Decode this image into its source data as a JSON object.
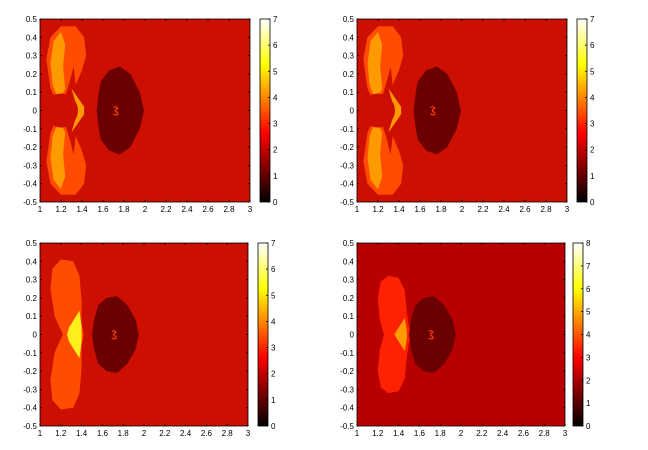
{
  "chart_data": [
    {
      "type": "heatmap",
      "xlim": [
        1,
        3
      ],
      "ylim": [
        -0.5,
        0.5
      ],
      "x_ticks": [
        "1",
        "1.2",
        "1.4",
        "1.6",
        "1.8",
        "2",
        "2.2",
        "2.4",
        "2.6",
        "2.8",
        "3"
      ],
      "y_ticks": [
        "0.5",
        "0.4",
        "0.3",
        "0.2",
        "0.1",
        "0",
        "-0.1",
        "-0.2",
        "-0.3",
        "-0.4",
        "-0.5"
      ],
      "colorbar": {
        "colormap": "hot",
        "range": [
          0,
          7
        ],
        "ticks": [
          "7",
          "6",
          "5",
          "4",
          "3",
          "2",
          "1",
          "0"
        ]
      },
      "background_value": 3,
      "regions": [
        {
          "shape": "outer lobes",
          "x_range": [
            1.1,
            1.45
          ],
          "value": 4
        },
        {
          "shape": "inner lobe crescents",
          "value": 5
        },
        {
          "shape": "small disk",
          "center": [
            1.2,
            0
          ],
          "value": 3
        },
        {
          "shape": "dark blob",
          "x_range": [
            1.55,
            2.0
          ],
          "y_range": [
            -0.22,
            0.22
          ],
          "value": 0.5
        }
      ]
    },
    {
      "type": "heatmap",
      "xlim": [
        1,
        3
      ],
      "ylim": [
        -0.5,
        0.5
      ],
      "x_ticks": [
        "1",
        "1.2",
        "1.4",
        "1.6",
        "1.8",
        "2",
        "2.2",
        "2.4",
        "2.6",
        "2.8",
        "3"
      ],
      "y_ticks": [
        "0.5",
        "0.4",
        "0.3",
        "0.2",
        "0.1",
        "0",
        "-0.1",
        "-0.2",
        "-0.3",
        "-0.4",
        "-0.5"
      ],
      "colorbar": {
        "colormap": "hot",
        "range": [
          0,
          7
        ],
        "ticks": [
          "7",
          "6",
          "5",
          "4",
          "3",
          "2",
          "1",
          "0"
        ]
      },
      "background_value": 3,
      "regions": [
        {
          "shape": "outer lobes",
          "x_range": [
            1.1,
            1.45
          ],
          "value": 4
        },
        {
          "shape": "inner lobe crescents",
          "value": 5
        },
        {
          "shape": "small disk",
          "center": [
            1.2,
            0
          ],
          "value": 3
        },
        {
          "shape": "dark blob",
          "x_range": [
            1.55,
            2.0
          ],
          "y_range": [
            -0.22,
            0.22
          ],
          "value": 0.5
        }
      ]
    },
    {
      "type": "heatmap",
      "xlim": [
        1,
        3
      ],
      "ylim": [
        -0.5,
        0.5
      ],
      "x_ticks": [
        "1",
        "1.2",
        "1.4",
        "1.6",
        "1.8",
        "2",
        "2.2",
        "2.4",
        "2.6",
        "2.8",
        "3"
      ],
      "y_ticks": [
        "0.5",
        "0.4",
        "0.3",
        "0.2",
        "0.1",
        "0",
        "-0.1",
        "-0.2",
        "-0.3",
        "-0.4",
        "-0.5"
      ],
      "colorbar": {
        "colormap": "hot",
        "range": [
          0,
          7
        ],
        "ticks": [
          "7",
          "6",
          "5",
          "4",
          "3",
          "2",
          "1",
          "0"
        ]
      },
      "background_value": 3,
      "regions": [
        {
          "shape": "lobes",
          "x_range": [
            1.1,
            1.4
          ],
          "value": 4
        },
        {
          "shape": "center wedge",
          "value": 5
        },
        {
          "shape": "dark blob",
          "x_range": [
            1.5,
            1.95
          ],
          "y_range": [
            -0.2,
            0.2
          ],
          "value": 0.5
        }
      ]
    },
    {
      "type": "heatmap",
      "xlim": [
        1,
        3
      ],
      "ylim": [
        -0.5,
        0.5
      ],
      "x_ticks": [
        "1",
        "1.2",
        "1.4",
        "1.6",
        "1.8",
        "2",
        "2.2",
        "2.4",
        "2.6",
        "2.8",
        "3"
      ],
      "y_ticks": [
        "0.5",
        "0.4",
        "0.3",
        "0.2",
        "0.1",
        "0",
        "-0.1",
        "-0.2",
        "-0.3",
        "-0.4",
        "-0.5"
      ],
      "colorbar": {
        "colormap": "hot",
        "range": [
          0,
          8
        ],
        "ticks": [
          "8",
          "7",
          "6",
          "5",
          "4",
          "3",
          "2",
          "1",
          "0"
        ]
      },
      "background_value": 2.5,
      "regions": [
        {
          "shape": "lobes",
          "x_range": [
            1.2,
            1.5
          ],
          "value": 3
        },
        {
          "shape": "center wedge",
          "value": 4
        },
        {
          "shape": "dark blob",
          "x_range": [
            1.5,
            1.95
          ],
          "y_range": [
            -0.2,
            0.2
          ],
          "value": 0.5
        }
      ]
    }
  ],
  "colors": {
    "bg_red": "#cc0f00",
    "bg_red4": "#b80000",
    "lobe_orange": "#ff4c00",
    "lobe_orange4": "#ff2200",
    "crescent_orange": "#ff9a00",
    "yellow": "#ffee1a",
    "dark": "#6a0000"
  }
}
